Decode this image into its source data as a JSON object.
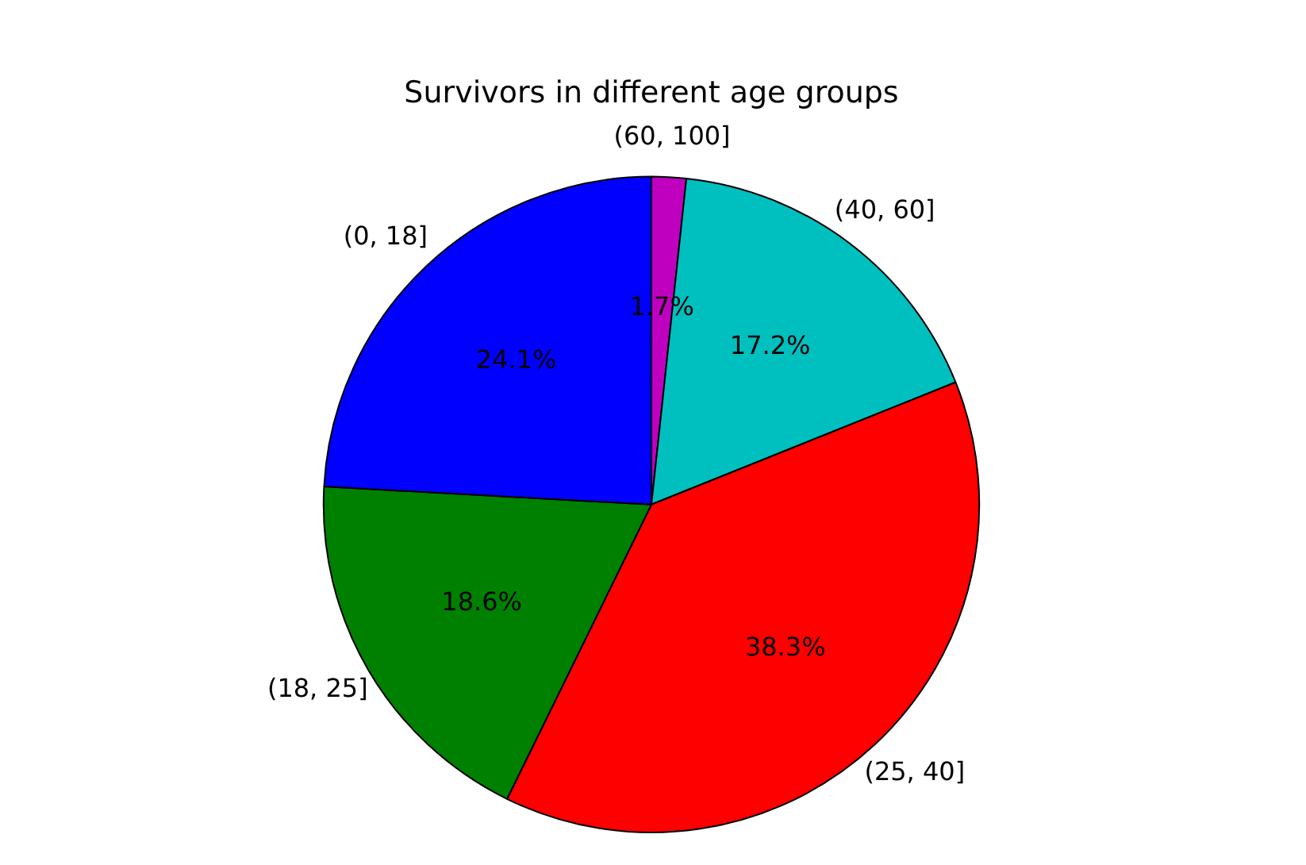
{
  "chart_data": {
    "type": "pie",
    "title": "Survivors in different age groups",
    "categories": [
      "(60, 100]",
      "(40, 60]",
      "(25, 40]",
      "(18, 25]",
      "(0, 18]"
    ],
    "values": [
      1.7,
      17.2,
      38.3,
      18.6,
      24.1
    ],
    "colors": [
      "#bf00bf",
      "#00bfbf",
      "#ff0000",
      "#008000",
      "#0000ff"
    ],
    "value_labels": [
      "1.7%",
      "17.2%",
      "38.3%",
      "18.6%",
      "24.1%"
    ],
    "legend": false
  }
}
